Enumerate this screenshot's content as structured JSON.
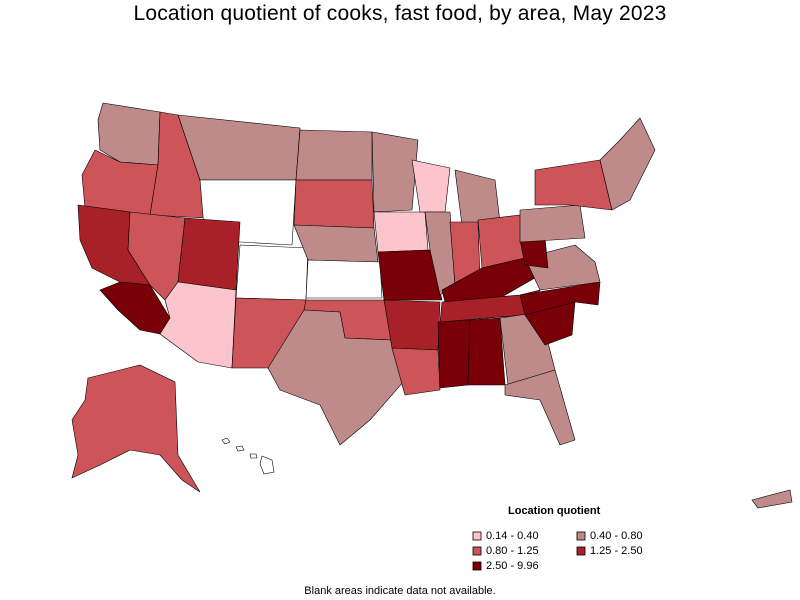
{
  "title": "Location quotient of cooks, fast food, by area, May 2023",
  "legend": {
    "title": "Location quotient",
    "items": [
      {
        "label": "0.14 - 0.40",
        "color": "#fcc4cc"
      },
      {
        "label": "0.40 - 0.80",
        "color": "#bf8a8a"
      },
      {
        "label": "0.80 - 1.25",
        "color": "#cd5458"
      },
      {
        "label": "1.25 - 2.50",
        "color": "#a82028"
      },
      {
        "label": "2.50 - 9.96",
        "color": "#7a0008"
      }
    ]
  },
  "note": "Blank areas indicate data not available.",
  "colors": {
    "very_low": "#fcc4cc",
    "low": "#bf8a8a",
    "mid": "#cd5458",
    "high": "#a82028",
    "very_high": "#7a0008",
    "no_data": "#ffffff",
    "border": "#000000"
  }
}
